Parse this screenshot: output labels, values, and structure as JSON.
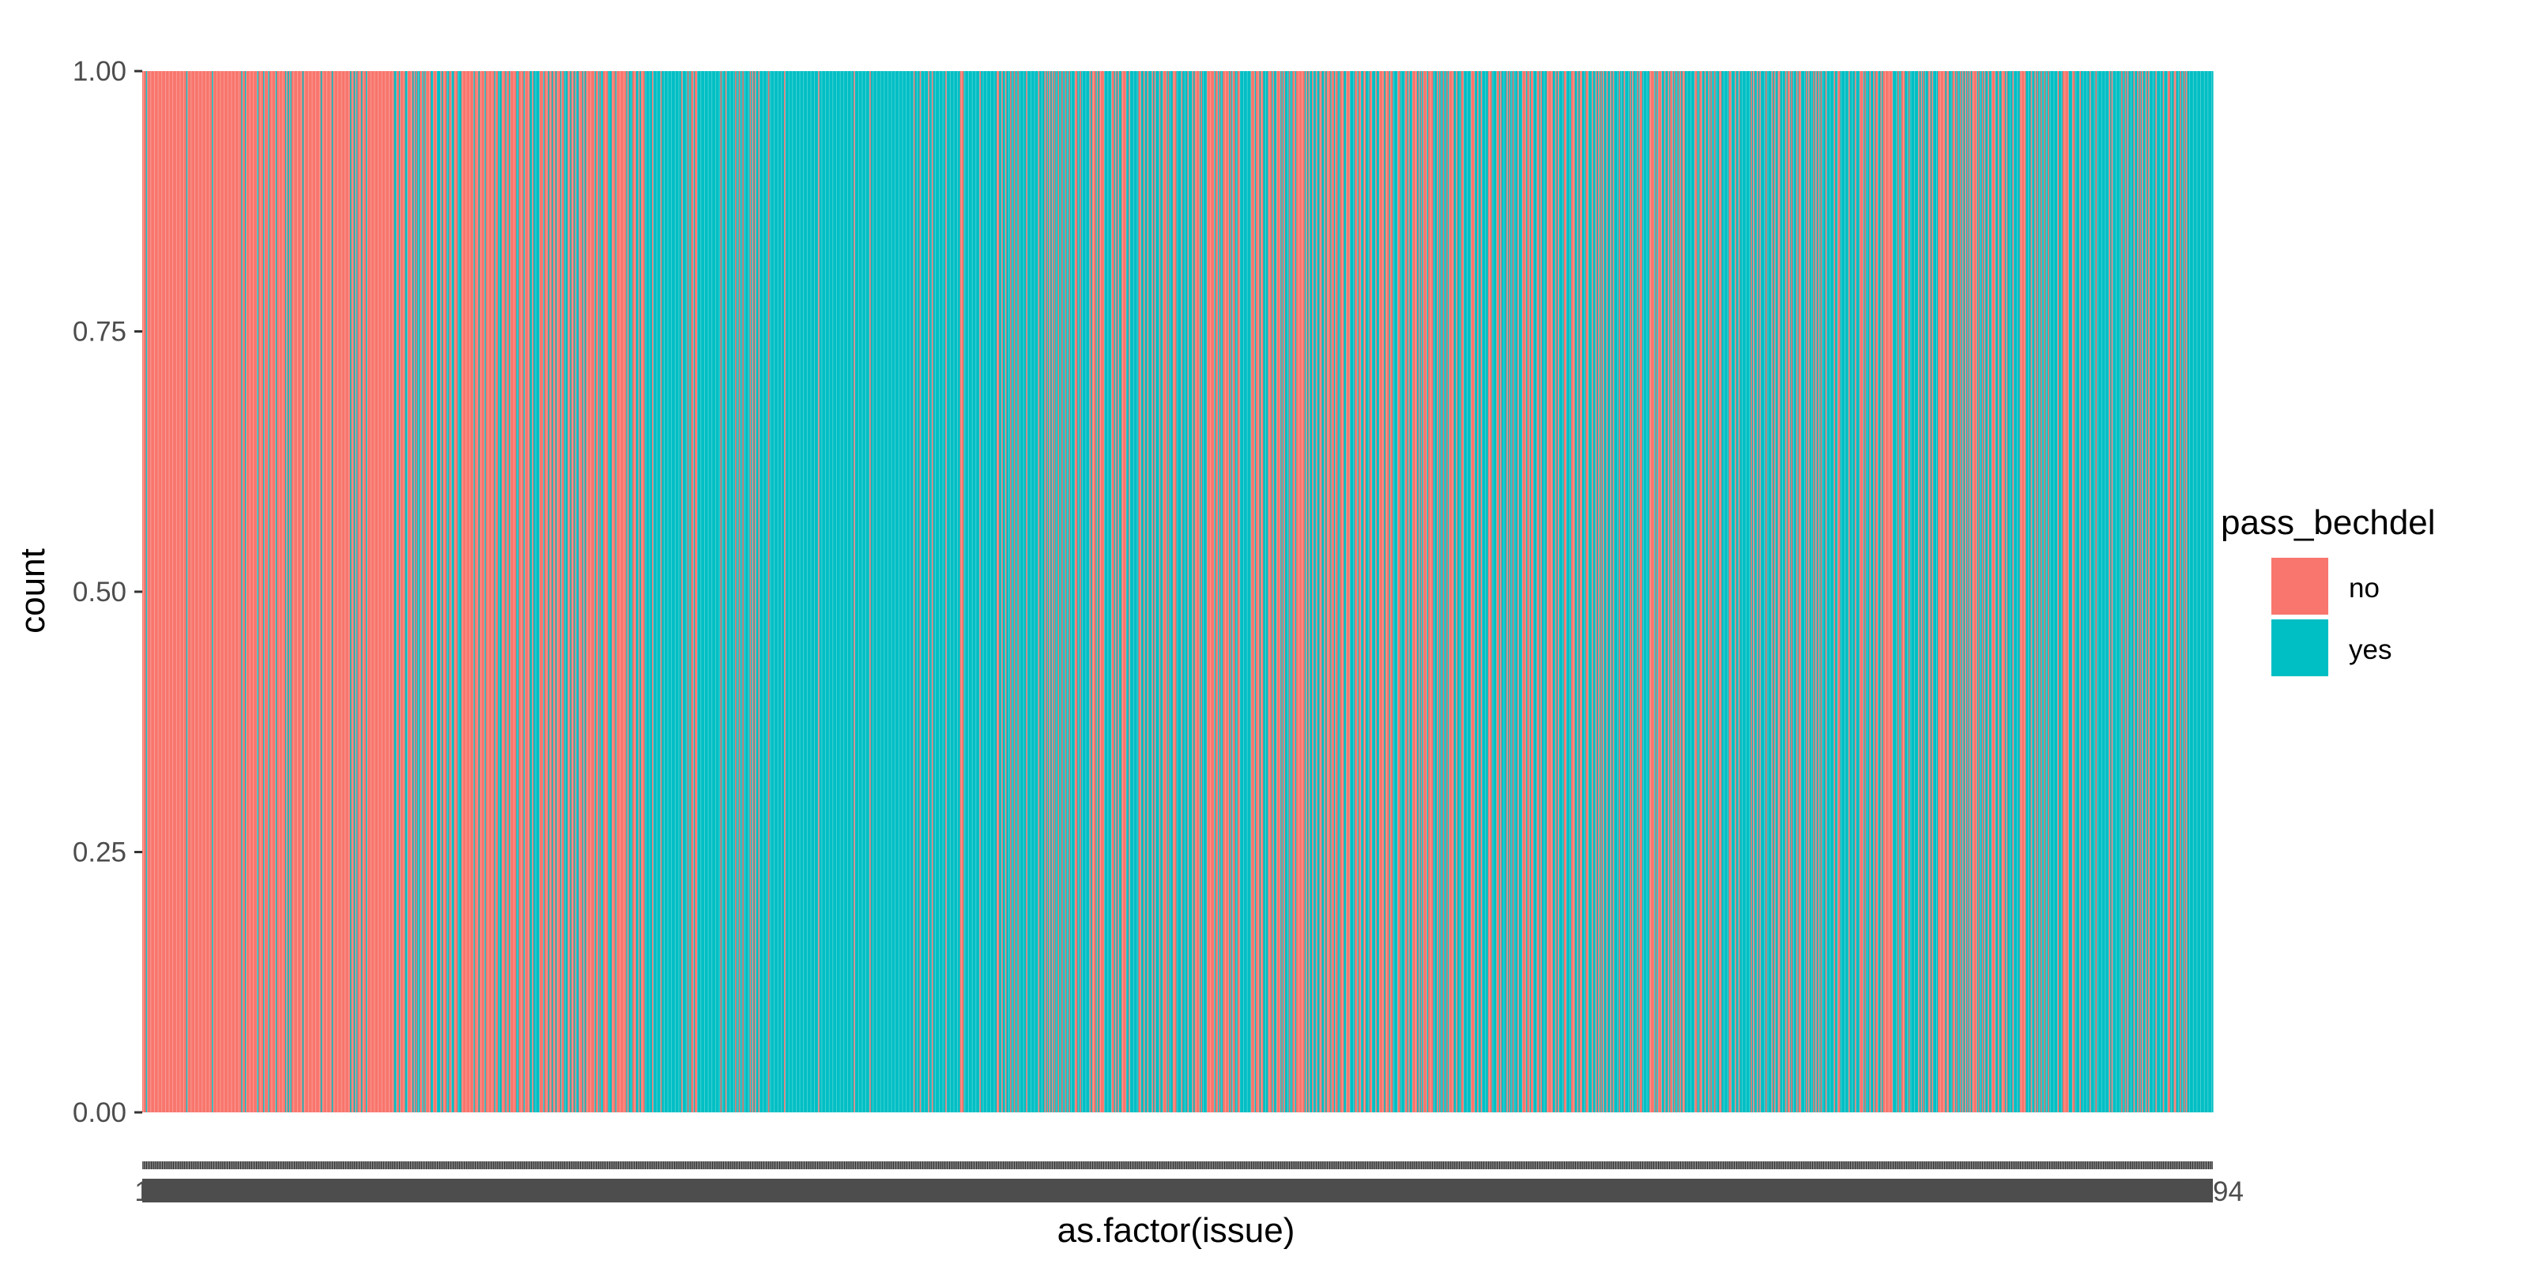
{
  "chart_data": {
    "type": "bar",
    "stacked": true,
    "position": "fill",
    "xlabel": "as.factor(issue)",
    "ylabel": "count",
    "ylim": [
      0,
      1
    ],
    "y_ticks": [
      "0.00",
      "0.25",
      "0.50",
      "0.75",
      "1.00"
    ],
    "x_tick_first": "1",
    "x_tick_last": "1694",
    "n_categories": 1694,
    "legend": {
      "title": "pass_bechdel",
      "position": "right",
      "entries": [
        {
          "label": "no",
          "color": "#F8766D"
        },
        {
          "label": "yes",
          "color": "#00BFC4"
        }
      ]
    },
    "series": [
      {
        "name": "no",
        "color": "#F8766D"
      },
      {
        "name": "yes",
        "color": "#00BFC4"
      }
    ],
    "share_no_by_segment": [
      0.94,
      0.9,
      0.82,
      0.85,
      0.72,
      0.7,
      0.68,
      0.52,
      0.25,
      0.12,
      0.1,
      0.1,
      0.12,
      0.18,
      0.2,
      0.35,
      0.5,
      0.62,
      0.55,
      0.5,
      0.42,
      0.38,
      0.35,
      0.32,
      0.28,
      0.38,
      0.5,
      0.45,
      0.3,
      0.22,
      0.2,
      0.08
    ],
    "grid": true
  }
}
